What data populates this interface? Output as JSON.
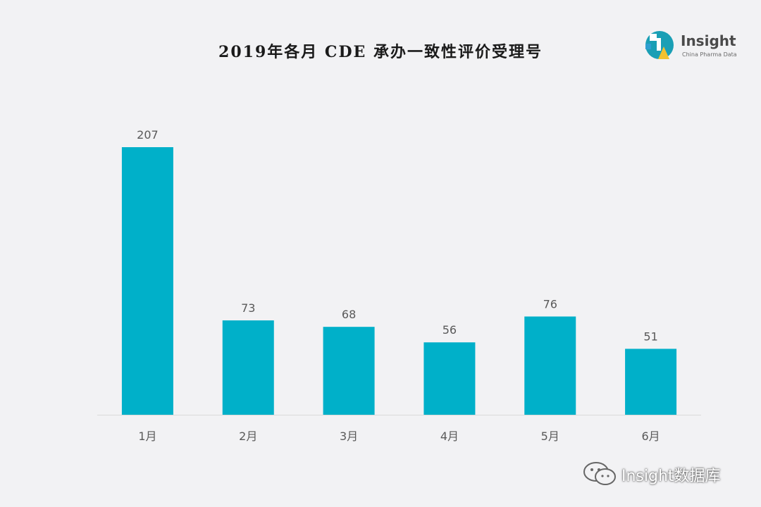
{
  "title": "2019年各月 CDE 承办一致性评价受理号",
  "logo": {
    "name": "Insight",
    "tagline": "China Pharma Data"
  },
  "watermark": {
    "text": "Insight数据库"
  },
  "colors": {
    "bar": "#00b0c9",
    "background": "#f2f2f4",
    "axis": "#d9d9d9",
    "label": "#595959",
    "logo_teal": "#1a9fb5",
    "logo_yellow": "#f2c230"
  },
  "chart_data": {
    "type": "bar",
    "title": "2019年各月 CDE 承办一致性评价受理号",
    "categories": [
      "1月",
      "2月",
      "3月",
      "4月",
      "5月",
      "6月"
    ],
    "values": [
      207,
      73,
      68,
      56,
      76,
      51
    ],
    "data_labels": [
      "207",
      "73",
      "68",
      "56",
      "76",
      "51"
    ],
    "xlabel": "",
    "ylabel": "",
    "ylim": [
      0,
      207
    ],
    "grid": false,
    "legend": "none"
  }
}
